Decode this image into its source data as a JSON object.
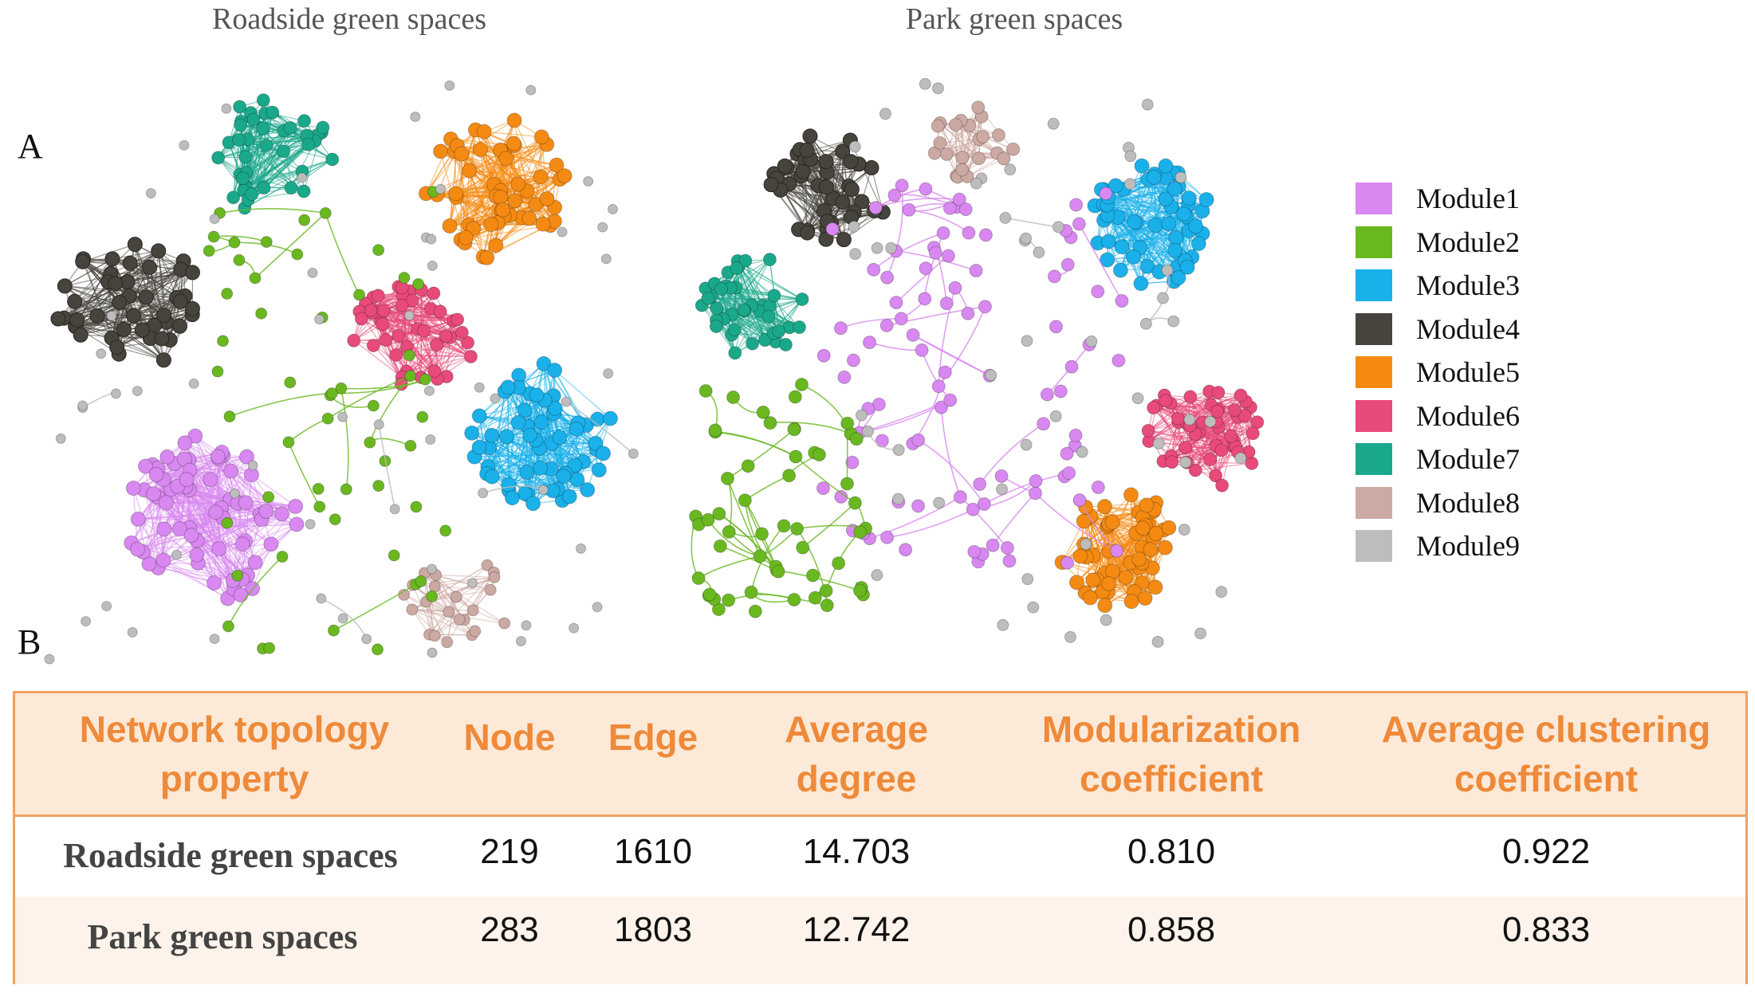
{
  "figure": {
    "panel_a_label": "A",
    "panel_b_label": "B",
    "networks": [
      {
        "title": "Roadside green spaces"
      },
      {
        "title": "Park green spaces"
      }
    ],
    "legend": [
      {
        "label": "Module1",
        "color": "#d888f0"
      },
      {
        "label": "Module2",
        "color": "#6ab820"
      },
      {
        "label": "Module3",
        "color": "#1ab0ea"
      },
      {
        "label": "Module4",
        "color": "#47433d"
      },
      {
        "label": "Module5",
        "color": "#f58a12"
      },
      {
        "label": "Module6",
        "color": "#e84a7a"
      },
      {
        "label": "Module7",
        "color": "#1aa88a"
      },
      {
        "label": "Module8",
        "color": "#cda9a3"
      },
      {
        "label": "Module9",
        "color": "#bdbdbd"
      }
    ]
  },
  "table": {
    "headers": [
      "Network topology property",
      "Node",
      "Edge",
      "Average degree",
      "Modularization coefficient",
      "Average clustering coefficient"
    ],
    "rows": [
      [
        "Roadside green spaces",
        "219",
        "1610",
        "14.703",
        "0.810",
        "0.922"
      ],
      [
        "Park green spaces",
        "283",
        "1803",
        "12.742",
        "0.858",
        "0.833"
      ]
    ]
  }
}
